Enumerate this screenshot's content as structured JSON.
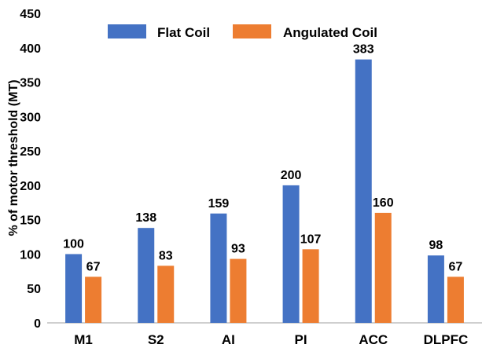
{
  "chart_data": {
    "type": "bar",
    "title": "",
    "xlabel": "",
    "ylabel": "% of motor threshold (MT)",
    "ylim": [
      0,
      450
    ],
    "yticks": [
      0,
      50,
      100,
      150,
      200,
      250,
      300,
      350,
      400,
      450
    ],
    "categories": [
      "M1",
      "S2",
      "AI",
      "PI",
      "ACC",
      "DLPFC"
    ],
    "series": [
      {
        "name": "Flat Coil",
        "color": "#4472C4",
        "values": [
          100,
          138,
          159,
          200,
          383,
          98
        ]
      },
      {
        "name": "Angulated Coil",
        "color": "#ED7D31",
        "values": [
          67,
          83,
          93,
          107,
          160,
          67
        ]
      }
    ],
    "grid": false,
    "legend_position": "top-center"
  }
}
